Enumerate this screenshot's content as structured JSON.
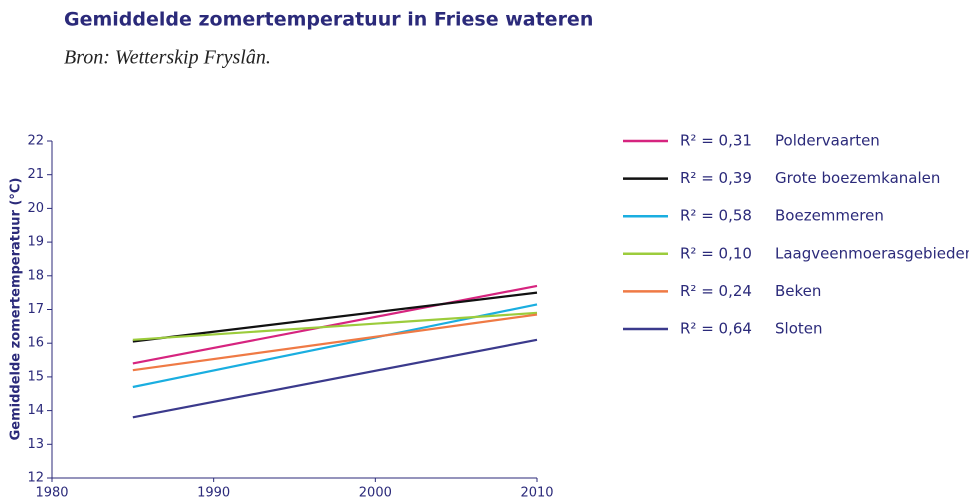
{
  "chart_data": {
    "type": "line",
    "title": "Gemiddelde zomertemperatuur in Friese wateren",
    "subtitle": "Bron: Wetterskip Fryslân.",
    "y_label": "Gemiddelde zomertemperatuur (°C)",
    "x": [
      1985,
      2010
    ],
    "xlim": [
      1980,
      2010
    ],
    "xticks": [
      1980,
      1990,
      2000,
      2010
    ],
    "ylim": [
      12,
      22
    ],
    "yticks": [
      12,
      13,
      14,
      15,
      16,
      17,
      18,
      19,
      20,
      21,
      22
    ],
    "series": [
      {
        "name": "Poldervaarten",
        "r2": "R² = 0,31",
        "color": "#d6247f",
        "values": [
          15.4,
          17.7
        ]
      },
      {
        "name": "Grote boezemkanalen",
        "r2": "R² = 0,39",
        "color": "#111111",
        "values": [
          16.05,
          17.5
        ]
      },
      {
        "name": "Boezemmeren",
        "r2": "R² = 0,58",
        "color": "#1aaee0",
        "values": [
          14.7,
          17.15
        ]
      },
      {
        "name": "Laagveenmoerasgebieden",
        "r2": "R² = 0,10",
        "color": "#9ccc3c",
        "values": [
          16.1,
          16.9
        ]
      },
      {
        "name": "Beken",
        "r2": "R² = 0,24",
        "color": "#ef7a45",
        "values": [
          15.2,
          16.85
        ]
      },
      {
        "name": "Sloten",
        "r2": "R² = 0,64",
        "color": "#3b3a8c",
        "values": [
          13.8,
          16.1
        ]
      }
    ]
  }
}
